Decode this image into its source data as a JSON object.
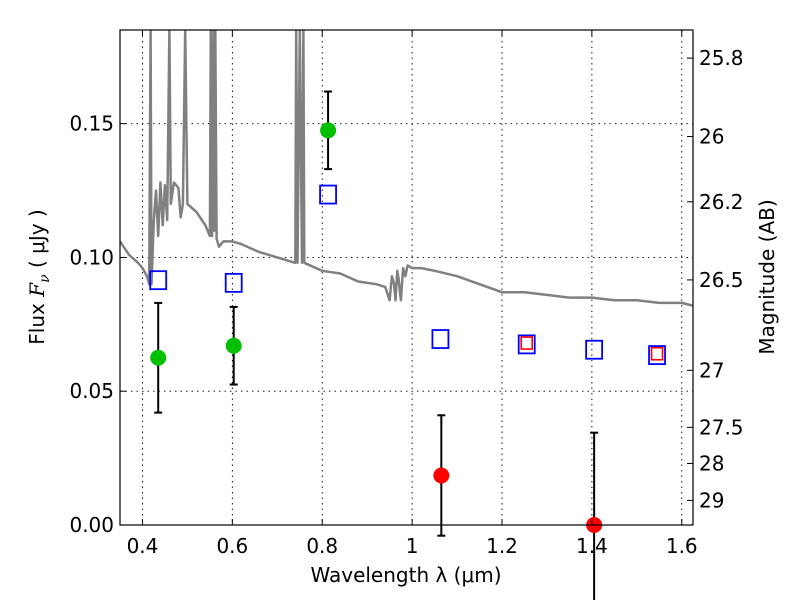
{
  "chart_data": {
    "type": "scatter",
    "xlabel": "Wavelength  λ (μm)",
    "ylabel_prefix": "Flux  ",
    "ylabel_symbol": "F",
    "ylabel_subscript": "ν",
    "ylabel_suffix": "  (  μJy  )",
    "y2label": "Magnitude (AB)",
    "xlim": [
      0.35,
      1.625
    ],
    "ylim": [
      0.0,
      0.185
    ],
    "xticks": [
      0.4,
      0.6,
      0.8,
      1.0,
      1.2,
      1.4,
      1.6
    ],
    "xtick_labels": [
      "0.4",
      "0.6",
      "0.8",
      "1",
      "1.2",
      "1.4",
      "1.6"
    ],
    "yticks": [
      0.0,
      0.05,
      0.1,
      0.15
    ],
    "ytick_labels": [
      "0.00",
      "0.05",
      "0.10",
      "0.15"
    ],
    "y2ticks": [
      {
        "label": "25.8",
        "flux": 0.1745
      },
      {
        "label": "26",
        "flux": 0.1452
      },
      {
        "label": "26.2",
        "flux": 0.1208
      },
      {
        "label": "26.5",
        "flux": 0.0916
      },
      {
        "label": "27",
        "flux": 0.0578
      },
      {
        "label": "27.5",
        "flux": 0.0365
      },
      {
        "label": "28",
        "flux": 0.023
      },
      {
        "label": "29",
        "flux": 0.0092
      }
    ],
    "grid": true,
    "series": [
      {
        "kind": "line",
        "color": "#808080",
        "points": [
          [
            0.35,
            0.106
          ],
          [
            0.37,
            0.101
          ],
          [
            0.39,
            0.098
          ],
          [
            0.4,
            0.096
          ],
          [
            0.41,
            0.093
          ],
          [
            0.415,
            0.09
          ],
          [
            0.418,
            0.185
          ],
          [
            0.42,
            0.09
          ],
          [
            0.425,
            0.113
          ],
          [
            0.43,
            0.125
          ],
          [
            0.435,
            0.108
          ],
          [
            0.44,
            0.128
          ],
          [
            0.445,
            0.112
          ],
          [
            0.45,
            0.127
          ],
          [
            0.455,
            0.114
          ],
          [
            0.46,
            0.185
          ],
          [
            0.463,
            0.12
          ],
          [
            0.47,
            0.128
          ],
          [
            0.48,
            0.126
          ],
          [
            0.485,
            0.115
          ],
          [
            0.49,
            0.12
          ],
          [
            0.495,
            0.185
          ],
          [
            0.5,
            0.12
          ],
          [
            0.52,
            0.117
          ],
          [
            0.54,
            0.112
          ],
          [
            0.55,
            0.108
          ],
          [
            0.552,
            0.185
          ],
          [
            0.555,
            0.108
          ],
          [
            0.558,
            0.185
          ],
          [
            0.56,
            0.11
          ],
          [
            0.562,
            0.185
          ],
          [
            0.565,
            0.107
          ],
          [
            0.57,
            0.104
          ],
          [
            0.58,
            0.106
          ],
          [
            0.6,
            0.106
          ],
          [
            0.62,
            0.105
          ],
          [
            0.66,
            0.102
          ],
          [
            0.7,
            0.1
          ],
          [
            0.74,
            0.098
          ],
          [
            0.742,
            0.185
          ],
          [
            0.745,
            0.098
          ],
          [
            0.75,
            0.185
          ],
          [
            0.755,
            0.098
          ],
          [
            0.758,
            0.185
          ],
          [
            0.76,
            0.098
          ],
          [
            0.8,
            0.095
          ],
          [
            0.84,
            0.094
          ],
          [
            0.88,
            0.091
          ],
          [
            0.92,
            0.09
          ],
          [
            0.94,
            0.089
          ],
          [
            0.95,
            0.084
          ],
          [
            0.955,
            0.093
          ],
          [
            0.96,
            0.09
          ],
          [
            0.963,
            0.084
          ],
          [
            0.967,
            0.095
          ],
          [
            0.97,
            0.092
          ],
          [
            0.975,
            0.084
          ],
          [
            0.98,
            0.096
          ],
          [
            0.985,
            0.093
          ],
          [
            0.99,
            0.097
          ],
          [
            1.0,
            0.096
          ],
          [
            1.02,
            0.096
          ],
          [
            1.05,
            0.095
          ],
          [
            1.1,
            0.093
          ],
          [
            1.15,
            0.09
          ],
          [
            1.2,
            0.087
          ],
          [
            1.25,
            0.087
          ],
          [
            1.3,
            0.086
          ],
          [
            1.35,
            0.085
          ],
          [
            1.4,
            0.085
          ],
          [
            1.45,
            0.084
          ],
          [
            1.5,
            0.084
          ],
          [
            1.55,
            0.083
          ],
          [
            1.6,
            0.083
          ],
          [
            1.625,
            0.082
          ]
        ]
      },
      {
        "kind": "open-square",
        "color": "#0000ff",
        "points": [
          [
            0.435,
            0.0915
          ],
          [
            0.603,
            0.0905
          ],
          [
            0.813,
            0.1235
          ],
          [
            1.063,
            0.0695
          ],
          [
            1.255,
            0.0675
          ],
          [
            1.405,
            0.0655
          ],
          [
            1.545,
            0.0635
          ]
        ]
      },
      {
        "kind": "small-square",
        "color": "#ff0000",
        "points": [
          [
            1.255,
            0.068
          ],
          [
            1.545,
            0.064
          ]
        ]
      },
      {
        "kind": "dot",
        "color": "#00c000",
        "points": [
          [
            0.435,
            0.0625,
            0.0205
          ],
          [
            0.603,
            0.067,
            0.0145
          ],
          [
            0.813,
            0.1475,
            0.0145
          ]
        ]
      },
      {
        "kind": "dot",
        "color": "#ff0000",
        "points": [
          [
            1.065,
            0.0185,
            0.0225
          ],
          [
            1.405,
            0.0,
            0.0345
          ]
        ]
      }
    ]
  }
}
